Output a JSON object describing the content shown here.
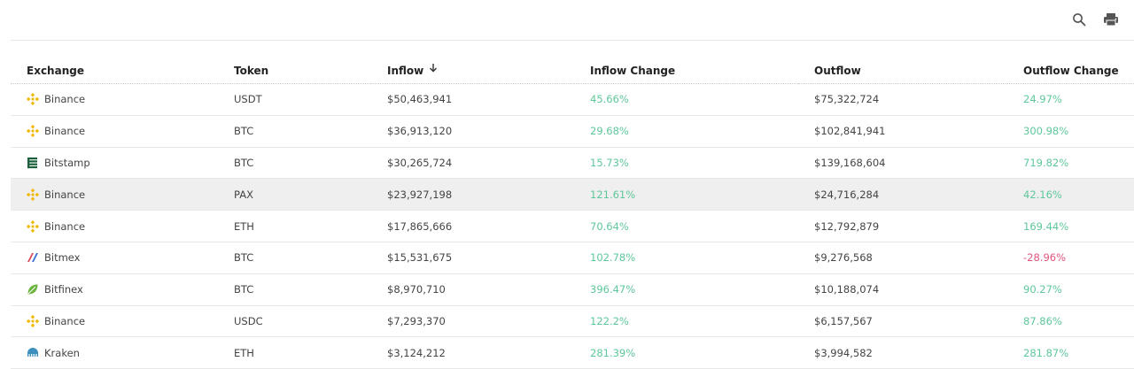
{
  "toolbar": {
    "search_icon": "search-icon",
    "print_icon": "print-icon"
  },
  "table": {
    "columns": [
      "Exchange",
      "Token",
      "Inflow",
      "Inflow Change",
      "Outflow",
      "Outflow Change"
    ],
    "sorted_column": "Inflow",
    "sort_direction": "desc",
    "rows": [
      {
        "exchange": "Binance",
        "icon": "binance",
        "token": "USDT",
        "inflow": "$50,463,941",
        "inflow_change": "45.66%",
        "outflow": "$75,322,724",
        "outflow_change": "24.97%"
      },
      {
        "exchange": "Binance",
        "icon": "binance",
        "token": "BTC",
        "inflow": "$36,913,120",
        "inflow_change": "29.68%",
        "outflow": "$102,841,941",
        "outflow_change": "300.98%"
      },
      {
        "exchange": "Bitstamp",
        "icon": "bitstamp",
        "token": "BTC",
        "inflow": "$30,265,724",
        "inflow_change": "15.73%",
        "outflow": "$139,168,604",
        "outflow_change": "719.82%"
      },
      {
        "exchange": "Binance",
        "icon": "binance",
        "token": "PAX",
        "inflow": "$23,927,198",
        "inflow_change": "121.61%",
        "outflow": "$24,716,284",
        "outflow_change": "42.16%"
      },
      {
        "exchange": "Binance",
        "icon": "binance",
        "token": "ETH",
        "inflow": "$17,865,666",
        "inflow_change": "70.64%",
        "outflow": "$12,792,879",
        "outflow_change": "169.44%"
      },
      {
        "exchange": "Bitmex",
        "icon": "bitmex",
        "token": "BTC",
        "inflow": "$15,531,675",
        "inflow_change": "102.78%",
        "outflow": "$9,276,568",
        "outflow_change": "-28.96%"
      },
      {
        "exchange": "Bitfinex",
        "icon": "bitfinex",
        "token": "BTC",
        "inflow": "$8,970,710",
        "inflow_change": "396.47%",
        "outflow": "$10,188,074",
        "outflow_change": "90.27%"
      },
      {
        "exchange": "Binance",
        "icon": "binance",
        "token": "USDC",
        "inflow": "$7,293,370",
        "inflow_change": "122.2%",
        "outflow": "$6,157,567",
        "outflow_change": "87.86%"
      },
      {
        "exchange": "Kraken",
        "icon": "kraken",
        "token": "ETH",
        "inflow": "$3,124,212",
        "inflow_change": "281.39%",
        "outflow": "$3,994,582",
        "outflow_change": "281.87%"
      }
    ]
  },
  "colors": {
    "positive": "#5ec79b",
    "negative": "#e1567c",
    "highlight_row": "#efefef"
  }
}
